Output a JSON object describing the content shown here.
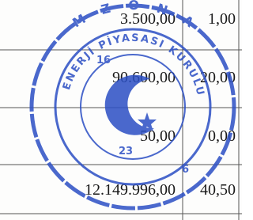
{
  "table": {
    "rows": [
      [
        "3.500,00",
        "1,00"
      ],
      [
        "90.600,00",
        "20,00"
      ],
      [
        "50,00",
        "0,00"
      ],
      [
        "12.149.996,00",
        "40,50"
      ]
    ]
  },
  "stamp": {
    "outer_text": "M Z O N A",
    "ring_text": "ENERJİ PİYASASI KURULU",
    "numbers": [
      "16",
      "23",
      "6"
    ]
  }
}
